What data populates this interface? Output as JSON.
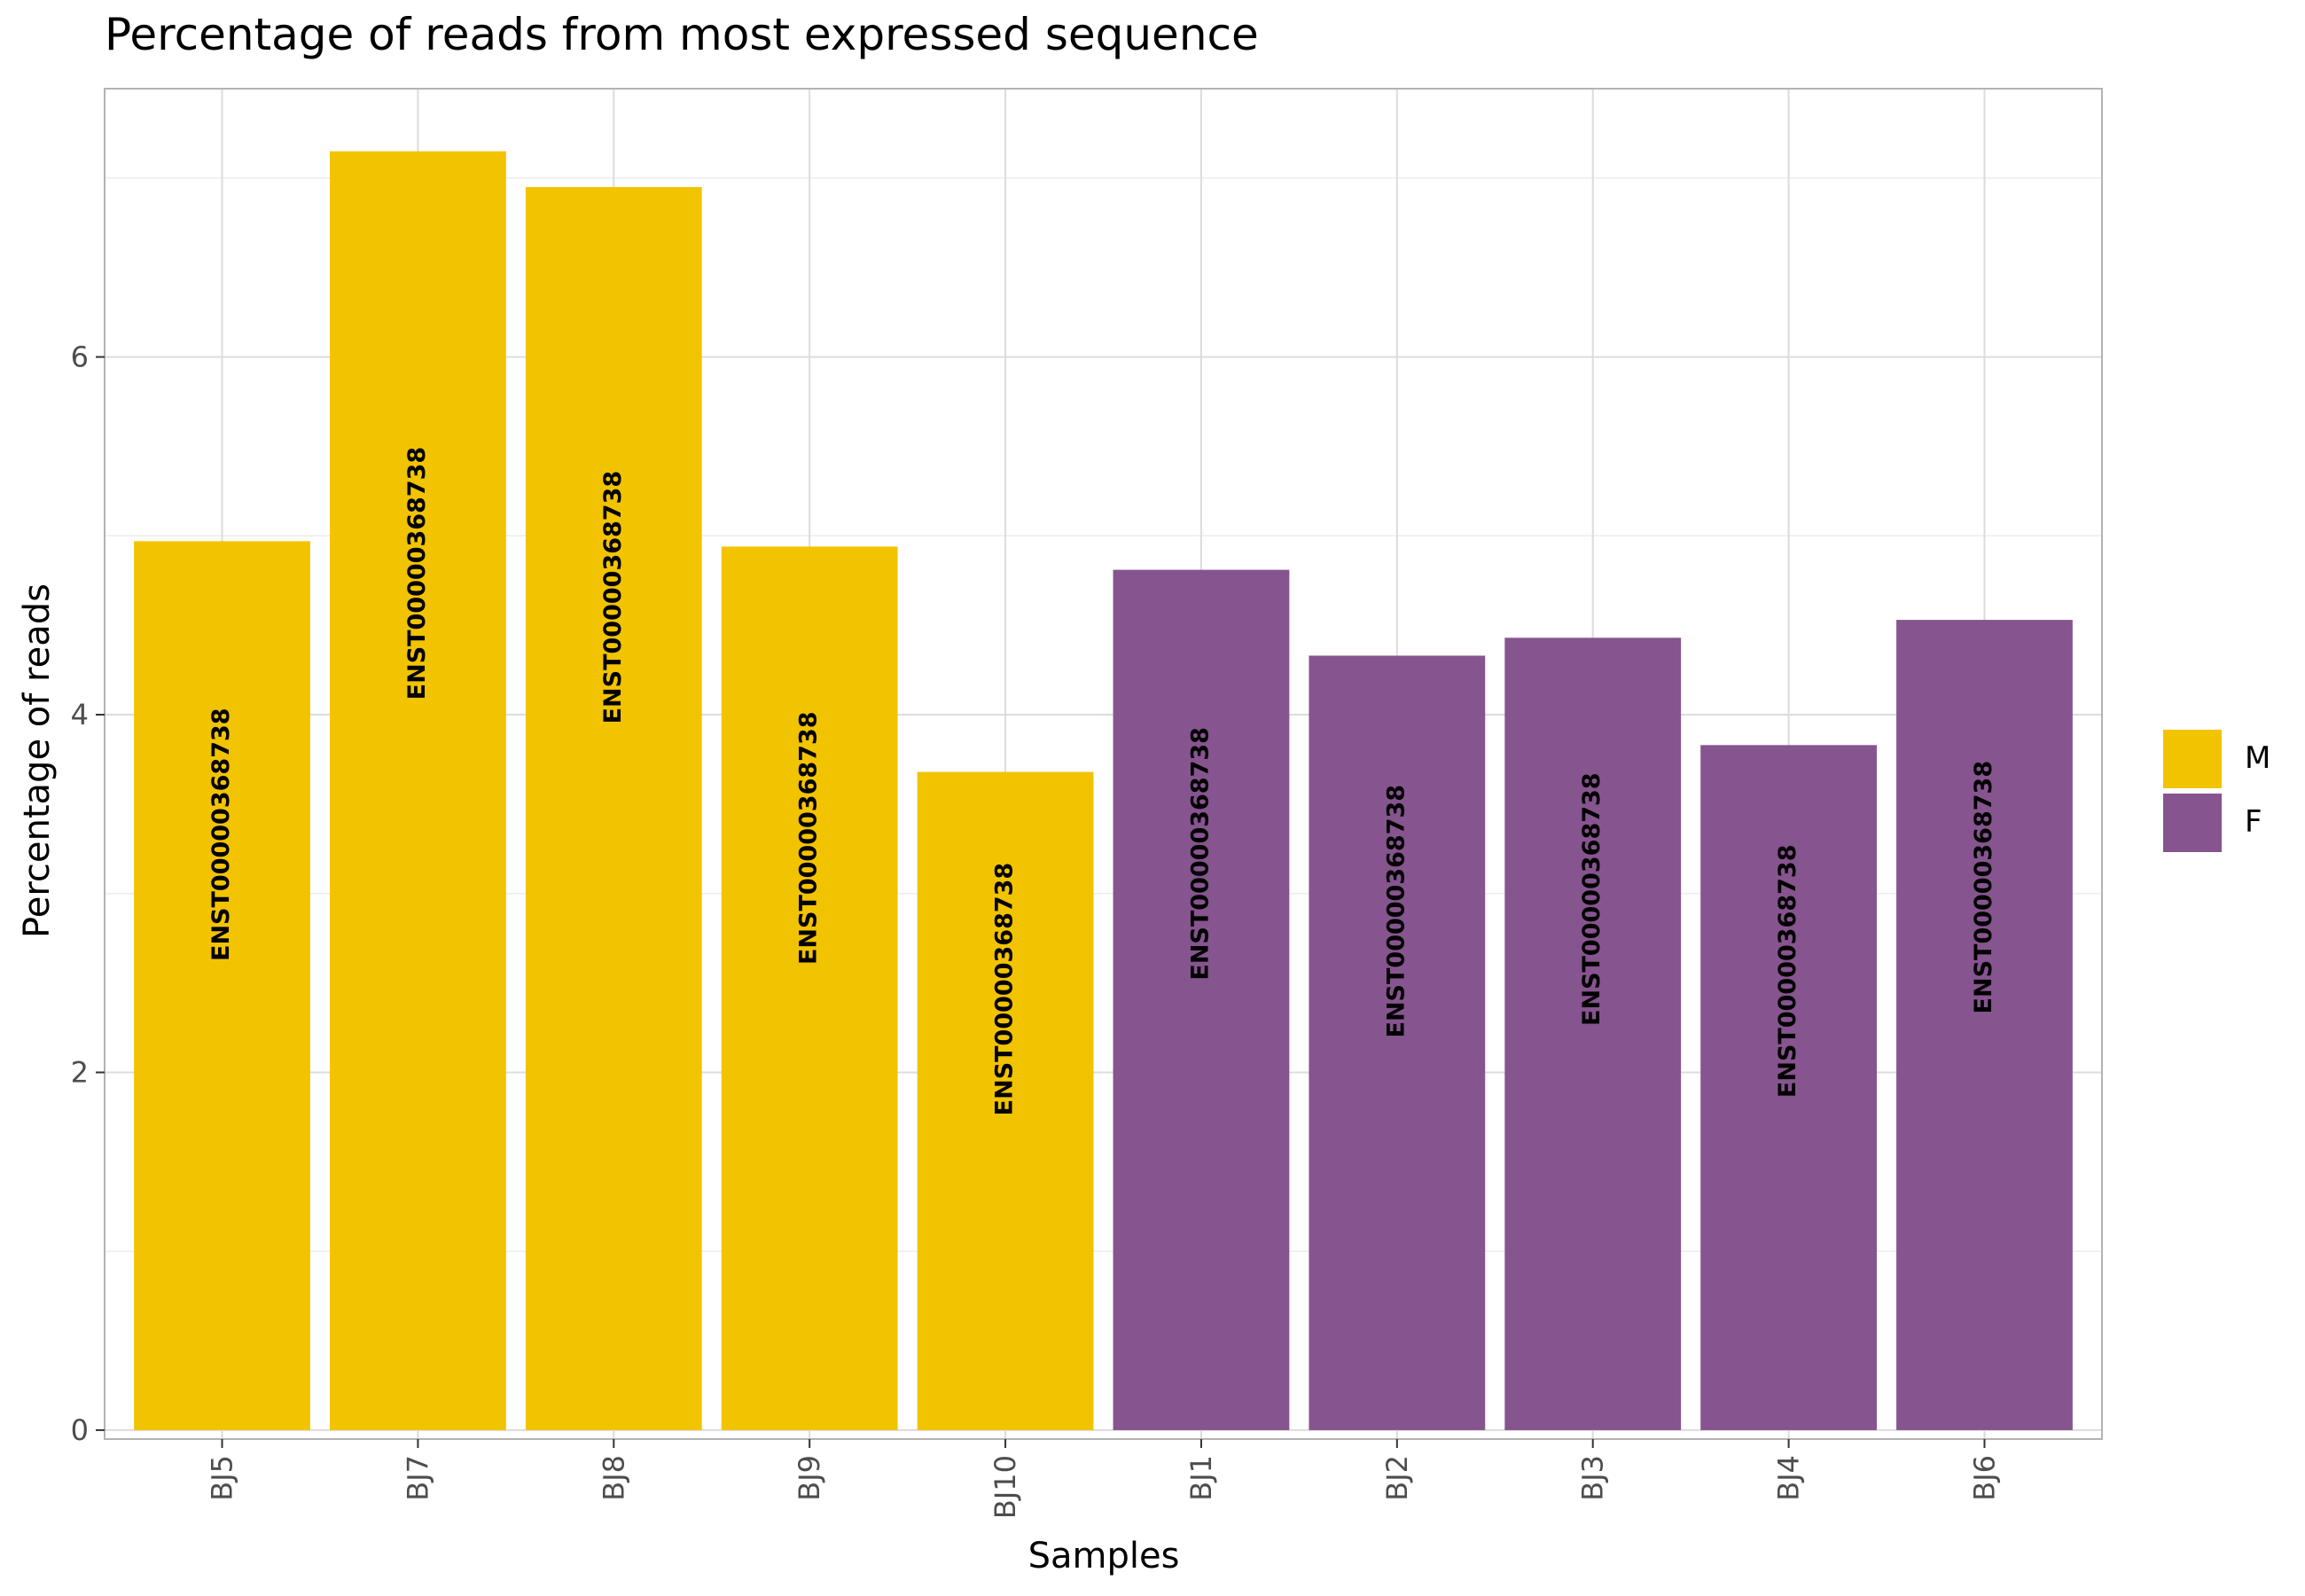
{
  "chart_data": {
    "type": "bar",
    "title": "Percentage of reads from most expressed sequence",
    "xlabel": "Samples",
    "ylabel": "Percentage of reads",
    "categories": [
      "BJ5",
      "BJ7",
      "BJ8",
      "BJ9",
      "BJ10",
      "BJ1",
      "BJ2",
      "BJ3",
      "BJ4",
      "BJ6"
    ],
    "values": [
      4.97,
      7.15,
      6.95,
      4.94,
      3.68,
      4.81,
      4.33,
      4.43,
      3.83,
      4.53
    ],
    "bar_labels": [
      "ENST00000368738",
      "ENST00000368738",
      "ENST00000368738",
      "ENST00000368738",
      "ENST00000368738",
      "ENST00000368738",
      "ENST00000368738",
      "ENST00000368738",
      "ENST00000368738",
      "ENST00000368738"
    ],
    "groups": [
      "M",
      "M",
      "M",
      "M",
      "M",
      "F",
      "F",
      "F",
      "F",
      "F"
    ],
    "legend": [
      {
        "label": "M",
        "color": "#F2C300"
      },
      {
        "label": "F",
        "color": "#86548F"
      }
    ],
    "yticks": [
      0,
      2,
      4,
      6
    ],
    "ylim": [
      -0.05,
      7.5
    ],
    "grid": true,
    "legend_position": "right"
  }
}
